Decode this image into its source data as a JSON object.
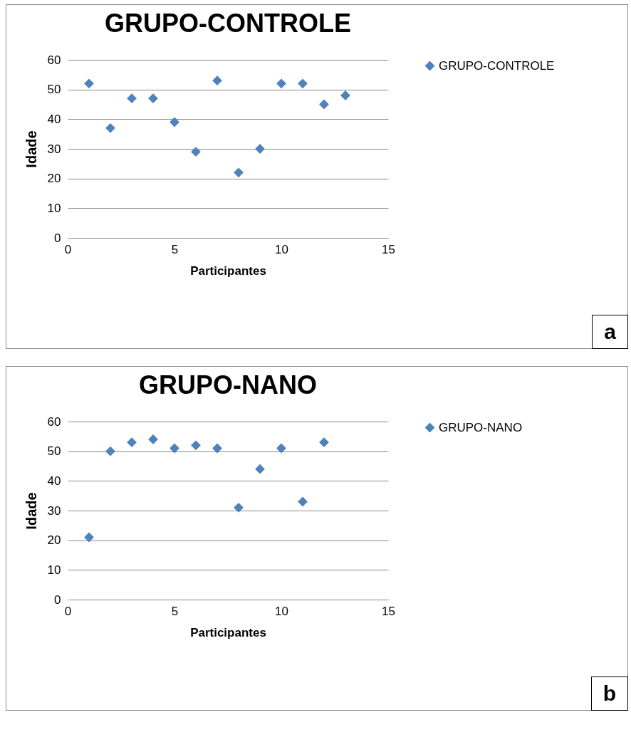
{
  "chart_data": [
    {
      "type": "scatter",
      "title": "GRUPO-CONTROLE",
      "xlabel": "Participantes",
      "ylabel": "Idade",
      "x": [
        1,
        2,
        3,
        4,
        5,
        6,
        7,
        8,
        9,
        10,
        11,
        12,
        13
      ],
      "series": [
        {
          "name": "GRUPO-CONTROLE",
          "color": "#4f81bd",
          "values": [
            52,
            37,
            47,
            47,
            39,
            29,
            53,
            22,
            30,
            52,
            52,
            45,
            48
          ]
        }
      ],
      "xlim": [
        0,
        15
      ],
      "ylim": [
        0,
        60
      ],
      "xticks": [
        0,
        5,
        10,
        15
      ],
      "yticks": [
        0,
        10,
        20,
        30,
        40,
        50,
        60
      ],
      "grid": "y",
      "legend": "right",
      "marker": "diamond",
      "annotations": [
        "a"
      ]
    },
    {
      "type": "scatter",
      "title": "GRUPO-NANO",
      "xlabel": "Participantes",
      "ylabel": "Idade",
      "x": [
        1,
        2,
        3,
        4,
        5,
        6,
        7,
        8,
        9,
        10,
        11,
        12
      ],
      "series": [
        {
          "name": "GRUPO-NANO",
          "color": "#4f81bd",
          "values": [
            21,
            50,
            53,
            54,
            51,
            52,
            51,
            31,
            44,
            51,
            33,
            53
          ]
        }
      ],
      "xlim": [
        0,
        15
      ],
      "ylim": [
        0,
        60
      ],
      "xticks": [
        0,
        5,
        10,
        15
      ],
      "yticks": [
        0,
        10,
        20,
        30,
        40,
        50,
        60
      ],
      "grid": "y",
      "legend": "right",
      "marker": "diamond",
      "annotations": [
        "b"
      ]
    }
  ]
}
